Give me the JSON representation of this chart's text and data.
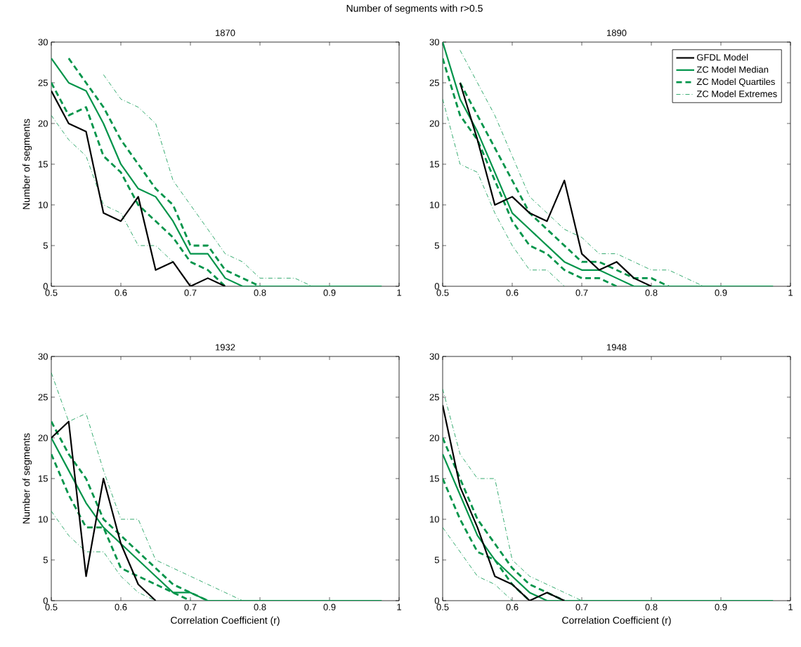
{
  "chart_data": [
    {
      "type": "line",
      "title": "1870",
      "ylabel": "Number of segments",
      "annotations": [
        "Number of segments with r>0.5"
      ],
      "xlim": [
        0.5,
        1
      ],
      "ylim": [
        0,
        30
      ],
      "xticks": [
        0.5,
        0.6,
        0.7,
        0.8,
        0.9,
        1
      ],
      "yticks": [
        0,
        5,
        10,
        15,
        20,
        25,
        30
      ],
      "x": [
        0.5,
        0.525,
        0.55,
        0.575,
        0.6,
        0.625,
        0.65,
        0.675,
        0.7,
        0.725,
        0.75,
        0.775,
        0.8,
        0.825,
        0.85,
        0.875,
        0.9,
        0.925,
        0.95,
        0.975
      ],
      "series": [
        {
          "color": "#000000",
          "line_style": "solid",
          "values": [
            24,
            20,
            19,
            9,
            8,
            11,
            2,
            3,
            0,
            1,
            0,
            null,
            null,
            null,
            null,
            null,
            null,
            null,
            null,
            null
          ]
        },
        {
          "color": "#00944a",
          "line_style": "solid",
          "values": [
            28,
            25,
            24,
            20,
            15,
            12,
            11,
            8,
            4,
            4,
            1,
            0,
            0,
            0,
            0,
            0,
            0,
            0,
            0,
            0
          ]
        },
        {
          "color": "#00944a",
          "line_style": "dashed",
          "values": [
            null,
            28,
            25,
            22,
            18,
            15,
            12,
            10,
            5,
            5,
            2,
            1,
            0,
            null,
            null,
            null,
            null,
            null,
            null,
            null
          ]
        },
        {
          "color": "#00944a",
          "line_style": "dashed",
          "values": [
            25,
            21,
            22,
            16,
            14,
            10,
            8,
            6,
            3,
            2,
            0,
            null,
            null,
            null,
            null,
            null,
            null,
            null,
            null,
            null
          ]
        },
        {
          "color": "#00944a",
          "line_style": "dashdotted",
          "values": [
            null,
            null,
            null,
            26,
            23,
            22,
            20,
            13,
            10,
            7,
            4,
            3,
            1,
            1,
            1,
            0,
            null,
            null,
            null,
            null
          ]
        },
        {
          "color": "#00944a",
          "line_style": "dashdotted",
          "values": [
            21,
            18,
            16,
            10,
            9,
            5,
            5,
            3,
            0,
            null,
            null,
            null,
            null,
            null,
            null,
            null,
            null,
            null,
            null,
            null
          ]
        }
      ]
    },
    {
      "type": "line",
      "title": "1890",
      "legend": "top right",
      "xlim": [
        0.5,
        1
      ],
      "ylim": [
        0,
        30
      ],
      "xticks": [
        0.5,
        0.6,
        0.7,
        0.8,
        0.9,
        1
      ],
      "yticks": [
        0,
        5,
        10,
        15,
        20,
        25,
        30
      ],
      "x": [
        0.5,
        0.525,
        0.55,
        0.575,
        0.6,
        0.625,
        0.65,
        0.675,
        0.7,
        0.725,
        0.75,
        0.775,
        0.8,
        0.825,
        0.85,
        0.875,
        0.9,
        0.925,
        0.95,
        0.975
      ],
      "series": [
        {
          "name": "GFDL Model",
          "color": "#000000",
          "line_style": "solid",
          "values": [
            null,
            25,
            18,
            10,
            11,
            9,
            8,
            13,
            4,
            2,
            3,
            1,
            0,
            null,
            null,
            null,
            null,
            null,
            null,
            null
          ]
        },
        {
          "name": "ZC Model Median",
          "color": "#00944a",
          "line_style": "solid",
          "values": [
            30,
            23,
            19,
            14,
            9,
            7,
            5,
            3,
            2,
            2,
            1,
            0,
            0,
            0,
            0,
            0,
            0,
            0,
            0,
            0
          ]
        },
        {
          "name": "ZC Model Quartiles",
          "color": "#00944a",
          "line_style": "dashed",
          "values": [
            null,
            25,
            21,
            17,
            13,
            9,
            7,
            5,
            3,
            3,
            2,
            1,
            1,
            0,
            null,
            null,
            null,
            null,
            null,
            null
          ]
        },
        {
          "color": "#00944a",
          "line_style": "dashed",
          "values": [
            28,
            21,
            18,
            13,
            8,
            5,
            4,
            2,
            1,
            1,
            0,
            null,
            null,
            null,
            null,
            null,
            null,
            null,
            null,
            null
          ]
        },
        {
          "name": "ZC Model Extremes",
          "color": "#00944a",
          "line_style": "dashdotted",
          "values": [
            null,
            29,
            25,
            21,
            16,
            11,
            9,
            7,
            6,
            4,
            4,
            3,
            2,
            2,
            1,
            0,
            null,
            null,
            null,
            null
          ]
        },
        {
          "color": "#00944a",
          "line_style": "dashdotted",
          "values": [
            23,
            15,
            14,
            9,
            5,
            2,
            2,
            0,
            null,
            null,
            null,
            null,
            null,
            null,
            null,
            null,
            null,
            null,
            null,
            null
          ]
        }
      ]
    },
    {
      "type": "line",
      "title": "1932",
      "xlabel": "Correlation Coefficient (r)",
      "ylabel": "Number of segments",
      "xlim": [
        0.5,
        1
      ],
      "ylim": [
        0,
        30
      ],
      "xticks": [
        0.5,
        0.6,
        0.7,
        0.8,
        0.9,
        1
      ],
      "yticks": [
        0,
        5,
        10,
        15,
        20,
        25,
        30
      ],
      "x": [
        0.5,
        0.525,
        0.55,
        0.575,
        0.6,
        0.625,
        0.65,
        0.675,
        0.7,
        0.725,
        0.75,
        0.775,
        0.8,
        0.825,
        0.85,
        0.875,
        0.9,
        0.925,
        0.95,
        0.975
      ],
      "series": [
        {
          "color": "#000000",
          "line_style": "solid",
          "values": [
            20,
            22,
            3,
            15,
            7,
            2,
            0,
            null,
            null,
            null,
            null,
            null,
            null,
            null,
            null,
            null,
            null,
            null,
            null,
            null
          ]
        },
        {
          "color": "#00944a",
          "line_style": "solid",
          "values": [
            20,
            16,
            12,
            9,
            7,
            5,
            3,
            1,
            1,
            0,
            0,
            0,
            0,
            0,
            0,
            0,
            0,
            0,
            0,
            0
          ]
        },
        {
          "color": "#00944a",
          "line_style": "dashed",
          "values": [
            22,
            18,
            15,
            10,
            8,
            6,
            4,
            2,
            1,
            0,
            null,
            null,
            null,
            null,
            null,
            null,
            null,
            null,
            null,
            null
          ]
        },
        {
          "color": "#00944a",
          "line_style": "dashed",
          "values": [
            18,
            13,
            9,
            9,
            4,
            3,
            2,
            1,
            0,
            null,
            null,
            null,
            null,
            null,
            null,
            null,
            null,
            null,
            null,
            null
          ]
        },
        {
          "color": "#00944a",
          "line_style": "dashdotted",
          "values": [
            28,
            22,
            23,
            16,
            10,
            10,
            5,
            4,
            3,
            2,
            1,
            0,
            null,
            null,
            null,
            null,
            null,
            null,
            null,
            null
          ]
        },
        {
          "color": "#00944a",
          "line_style": "dashdotted",
          "values": [
            11,
            8,
            6,
            6,
            3,
            1,
            0,
            null,
            null,
            null,
            null,
            null,
            null,
            null,
            null,
            null,
            null,
            null,
            null,
            null
          ]
        }
      ]
    },
    {
      "type": "line",
      "title": "1948",
      "xlabel": "Correlation Coefficient (r)",
      "xlim": [
        0.5,
        1
      ],
      "ylim": [
        0,
        30
      ],
      "xticks": [
        0.5,
        0.6,
        0.7,
        0.8,
        0.9,
        1
      ],
      "yticks": [
        0,
        5,
        10,
        15,
        20,
        25,
        30
      ],
      "x": [
        0.5,
        0.525,
        0.55,
        0.575,
        0.6,
        0.625,
        0.65,
        0.675,
        0.7,
        0.725,
        0.75,
        0.775,
        0.8,
        0.825,
        0.85,
        0.875,
        0.9,
        0.925,
        0.95,
        0.975
      ],
      "series": [
        {
          "color": "#000000",
          "line_style": "solid",
          "values": [
            24,
            14,
            9,
            3,
            2,
            0,
            1,
            0,
            null,
            null,
            null,
            null,
            null,
            null,
            null,
            null,
            null,
            null,
            null,
            null
          ]
        },
        {
          "color": "#00944a",
          "line_style": "solid",
          "values": [
            18,
            13,
            8,
            5,
            3,
            1,
            0,
            0,
            0,
            0,
            0,
            0,
            0,
            0,
            0,
            0,
            0,
            0,
            0,
            0
          ]
        },
        {
          "color": "#00944a",
          "line_style": "dashed",
          "values": [
            20,
            15,
            10,
            7,
            4,
            2,
            1,
            0,
            null,
            null,
            null,
            null,
            null,
            null,
            null,
            null,
            null,
            null,
            null,
            null
          ]
        },
        {
          "color": "#00944a",
          "line_style": "dashed",
          "values": [
            15,
            10,
            6,
            5,
            2,
            0,
            null,
            null,
            null,
            null,
            null,
            null,
            null,
            null,
            null,
            null,
            null,
            null,
            null,
            null
          ]
        },
        {
          "color": "#00944a",
          "line_style": "dashdotted",
          "values": [
            26,
            18,
            15,
            15,
            5,
            3,
            2,
            1,
            0,
            null,
            null,
            null,
            null,
            null,
            null,
            null,
            null,
            null,
            null,
            null
          ]
        },
        {
          "color": "#00944a",
          "line_style": "dashdotted",
          "values": [
            9,
            6,
            3,
            2,
            0,
            null,
            null,
            null,
            null,
            null,
            null,
            null,
            null,
            null,
            null,
            null,
            null,
            null,
            null,
            null
          ]
        }
      ]
    }
  ]
}
